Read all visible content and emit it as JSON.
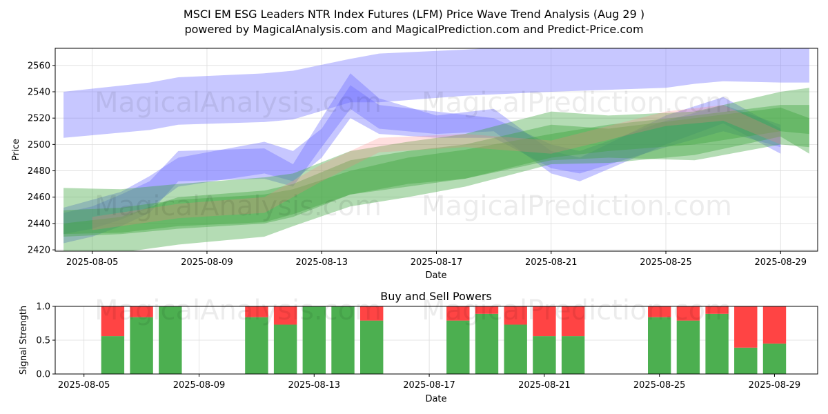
{
  "titles": {
    "line1": "MSCI EM ESG Leaders NTR Index Futures (LFM) Price Wave Trend Analysis (Aug 29 )",
    "line2": "powered by MagicalAnalysis.com and MagicalPrediction.com and Predict-Price.com"
  },
  "watermarks": {
    "left": "MagicalAnalysis.com",
    "right": "MagicalPrediction.com"
  },
  "colors": {
    "blue_band": "#6b6bff",
    "green_band": "#3aa33a",
    "red_band": "#ff8080",
    "buy": "#4caf50",
    "sell": "#ff4444"
  },
  "chart_data": [
    {
      "type": "area",
      "title": "",
      "xlabel": "Date",
      "ylabel": "Price",
      "xlim": [
        "2025-08-03T17:00",
        "2025-08-30T07:00"
      ],
      "ylim": [
        2419,
        2573
      ],
      "x_tick_labels": [
        "2025-08-05",
        "2025-08-09",
        "2025-08-13",
        "2025-08-17",
        "2025-08-21",
        "2025-08-25",
        "2025-08-29"
      ],
      "y_tick_labels": [
        2420,
        2440,
        2460,
        2480,
        2500,
        2520,
        2540,
        2560
      ],
      "grid": true,
      "series": [
        {
          "color": "blue",
          "x": [
            "2025-08-04",
            "2025-08-07",
            "2025-08-08",
            "2025-08-11",
            "2025-08-12",
            "2025-08-14",
            "2025-08-15",
            "2025-08-18",
            "2025-08-21",
            "2025-08-25",
            "2025-08-26",
            "2025-08-27",
            "2025-08-29",
            "2025-08-30"
          ],
          "upper": [
            2540,
            2547,
            2551,
            2554,
            2556,
            2565,
            2569,
            2572,
            2576,
            2580,
            2580,
            2582,
            2580,
            2575
          ],
          "lower": [
            2505,
            2511,
            2515,
            2517,
            2519,
            2532,
            2532,
            2537,
            2540,
            2543,
            2546,
            2548,
            2547,
            2547
          ]
        },
        {
          "color": "blue",
          "x": [
            "2025-08-04",
            "2025-08-05",
            "2025-08-06",
            "2025-08-07",
            "2025-08-08",
            "2025-08-11",
            "2025-08-12",
            "2025-08-13",
            "2025-08-14",
            "2025-08-15",
            "2025-08-17",
            "2025-08-19",
            "2025-08-21",
            "2025-08-22",
            "2025-08-25",
            "2025-08-27",
            "2025-08-29"
          ],
          "upper": [
            2448,
            2453,
            2462,
            2472,
            2495,
            2497,
            2485,
            2520,
            2554,
            2535,
            2522,
            2527,
            2495,
            2490,
            2522,
            2536,
            2512
          ],
          "lower": [
            2425,
            2430,
            2438,
            2448,
            2472,
            2474,
            2468,
            2498,
            2527,
            2512,
            2508,
            2510,
            2478,
            2472,
            2500,
            2516,
            2493
          ]
        },
        {
          "color": "blue",
          "x": [
            "2025-08-04",
            "2025-08-05",
            "2025-08-06",
            "2025-08-07",
            "2025-08-08",
            "2025-08-11",
            "2025-08-12",
            "2025-08-13",
            "2025-08-14",
            "2025-08-15",
            "2025-08-17",
            "2025-08-19",
            "2025-08-21",
            "2025-08-22",
            "2025-08-25",
            "2025-08-27",
            "2025-08-29"
          ],
          "upper": [
            2452,
            2458,
            2464,
            2476,
            2490,
            2502,
            2495,
            2512,
            2545,
            2530,
            2525,
            2520,
            2500,
            2495,
            2518,
            2530,
            2515
          ],
          "lower": [
            2432,
            2436,
            2443,
            2452,
            2468,
            2478,
            2472,
            2490,
            2520,
            2508,
            2505,
            2505,
            2482,
            2478,
            2498,
            2510,
            2498
          ]
        },
        {
          "color": "green",
          "x": [
            "2025-08-04",
            "2025-08-06",
            "2025-08-08",
            "2025-08-11",
            "2025-08-12",
            "2025-08-14",
            "2025-08-16",
            "2025-08-18",
            "2025-08-21",
            "2025-08-23",
            "2025-08-26",
            "2025-08-29",
            "2025-08-30"
          ],
          "upper": [
            2467,
            2466,
            2470,
            2475,
            2478,
            2495,
            2502,
            2508,
            2525,
            2522,
            2525,
            2540,
            2543
          ],
          "lower": [
            2432,
            2433,
            2438,
            2441,
            2447,
            2462,
            2470,
            2474,
            2488,
            2490,
            2488,
            2500,
            2498
          ]
        },
        {
          "color": "green",
          "x": [
            "2025-08-04",
            "2025-08-06",
            "2025-08-08",
            "2025-08-11",
            "2025-08-12",
            "2025-08-14",
            "2025-08-16",
            "2025-08-18",
            "2025-08-21",
            "2025-08-23",
            "2025-08-26",
            "2025-08-29",
            "2025-08-30"
          ],
          "upper": [
            2440,
            2445,
            2460,
            2465,
            2470,
            2488,
            2495,
            2500,
            2515,
            2512,
            2520,
            2528,
            2520
          ],
          "lower": [
            2410,
            2418,
            2424,
            2430,
            2438,
            2453,
            2460,
            2468,
            2485,
            2486,
            2492,
            2506,
            2493
          ]
        },
        {
          "color": "green",
          "x": [
            "2025-08-04",
            "2025-08-06",
            "2025-08-08",
            "2025-08-11",
            "2025-08-12",
            "2025-08-14",
            "2025-08-16",
            "2025-08-18",
            "2025-08-21",
            "2025-08-23",
            "2025-08-26",
            "2025-08-29",
            "2025-08-30"
          ],
          "upper": [
            2450,
            2452,
            2458,
            2462,
            2466,
            2480,
            2490,
            2496,
            2508,
            2515,
            2522,
            2530,
            2530
          ],
          "lower": [
            2430,
            2432,
            2436,
            2440,
            2445,
            2462,
            2468,
            2474,
            2490,
            2495,
            2500,
            2510,
            2508
          ]
        },
        {
          "color": "red",
          "x": [
            "2025-08-05",
            "2025-08-08",
            "2025-08-11",
            "2025-08-13",
            "2025-08-15",
            "2025-08-18",
            "2025-08-21",
            "2025-08-25",
            "2025-08-27",
            "2025-08-29"
          ],
          "upper": [
            2445,
            2455,
            2460,
            2485,
            2505,
            2508,
            2503,
            2525,
            2530,
            2510
          ],
          "lower": [
            2435,
            2444,
            2448,
            2472,
            2494,
            2498,
            2493,
            2514,
            2518,
            2500
          ]
        }
      ]
    },
    {
      "type": "bar",
      "title": "Buy and Sell Powers",
      "xlabel": "Date",
      "ylabel": "Signal Strength",
      "xlim": [
        "2025-08-04T00:00",
        "2025-08-30T12:00"
      ],
      "ylim": [
        0,
        1
      ],
      "x_tick_labels": [
        "2025-08-05",
        "2025-08-09",
        "2025-08-13",
        "2025-08-17",
        "2025-08-21",
        "2025-08-25",
        "2025-08-29"
      ],
      "y_tick_labels": [
        "0.0",
        "0.5",
        "1.0"
      ],
      "grid": true,
      "categories": [
        "2025-08-06",
        "2025-08-07",
        "2025-08-08",
        "2025-08-11",
        "2025-08-12",
        "2025-08-13",
        "2025-08-14",
        "2025-08-15",
        "2025-08-18",
        "2025-08-19",
        "2025-08-20",
        "2025-08-21",
        "2025-08-22",
        "2025-08-25",
        "2025-08-26",
        "2025-08-27",
        "2025-08-28",
        "2025-08-29"
      ],
      "series": [
        {
          "name": "Buy",
          "values": [
            0.56,
            0.84,
            1.0,
            0.84,
            0.73,
            1.0,
            1.0,
            0.79,
            0.79,
            0.89,
            0.73,
            0.56,
            0.56,
            0.84,
            0.79,
            0.89,
            0.39,
            0.45
          ]
        },
        {
          "name": "Sell",
          "values": [
            0.44,
            0.16,
            0.0,
            0.16,
            0.27,
            0.0,
            0.0,
            0.21,
            0.21,
            0.11,
            0.27,
            0.44,
            0.44,
            0.16,
            0.21,
            0.11,
            0.61,
            0.55
          ]
        }
      ]
    }
  ]
}
